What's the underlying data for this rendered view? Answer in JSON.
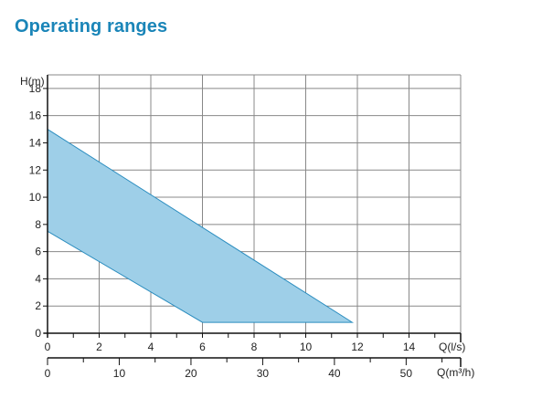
{
  "page": {
    "title": "Operating ranges"
  },
  "colors": {
    "title": "#1a85b8",
    "region_fill": "#9ecfe8",
    "region_stroke": "#2b8dbf",
    "grid": "#888888",
    "axis": "#111111"
  },
  "chart_data": {
    "type": "area",
    "title": "",
    "ylabel": "H(m)",
    "xlabel": "Q(l/s)",
    "xlabel_secondary": "Q(m³/h)",
    "xlim": [
      0,
      16
    ],
    "ylim": [
      0,
      19
    ],
    "xticks": [
      0,
      2,
      4,
      6,
      8,
      10,
      12,
      14
    ],
    "yticks": [
      0,
      2,
      4,
      6,
      8,
      10,
      12,
      14,
      16,
      18
    ],
    "xticks_secondary": [
      0,
      10,
      20,
      30,
      40,
      50
    ],
    "grid": true,
    "region": {
      "name": "",
      "points": [
        [
          0,
          15.0
        ],
        [
          11.8,
          0.8
        ],
        [
          6.0,
          0.8
        ],
        [
          0,
          7.5
        ]
      ]
    }
  }
}
